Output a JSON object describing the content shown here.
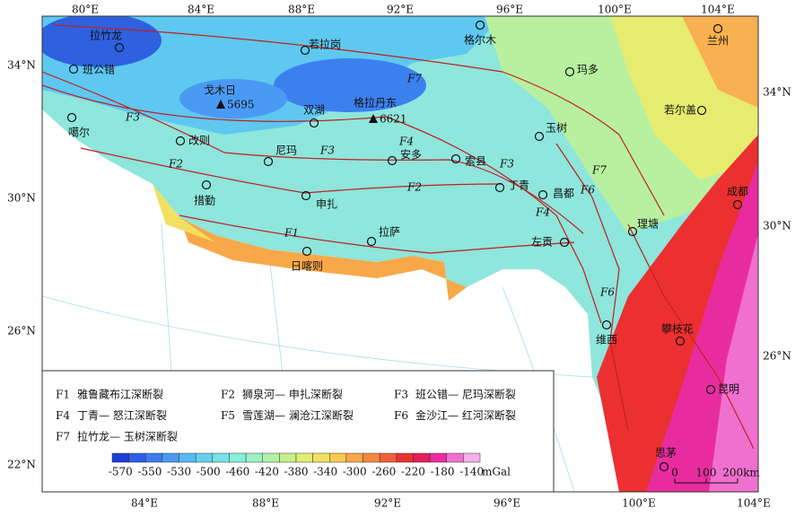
{
  "axes": {
    "top": [
      "80°E",
      "84°E",
      "88°E",
      "92°E",
      "96°E",
      "100°E",
      "104°E"
    ],
    "bottom": [
      "84°E",
      "88°E",
      "92°E",
      "96°E",
      "100°E",
      "104°E"
    ],
    "left": [
      "34°N",
      "30°N",
      "26°N",
      "22°N"
    ],
    "right": [
      "34°N",
      "30°N",
      "26°N"
    ]
  },
  "places": [
    "拉竹龙",
    "若拉岗",
    "格尔木",
    "兰州",
    "班公错",
    "玛多",
    "双湖",
    "若尔盖",
    "噶尔",
    "玉树",
    "改则",
    "尼玛",
    "安多",
    "索县",
    "措勤",
    "丁青",
    "昌都",
    "申扎",
    "成都",
    "理塘",
    "拉萨",
    "左贡",
    "日喀则",
    "维西",
    "攀枝花",
    "昆明",
    "思茅"
  ],
  "peaks": [
    {
      "name": "戈木日",
      "elevation": 5695
    },
    {
      "name": "格拉丹东",
      "elevation": 6621
    }
  ],
  "fault_labels": [
    "F7",
    "F3",
    "F3",
    "F4",
    "F2",
    "F2",
    "F1",
    "F3",
    "F4",
    "F6",
    "F7",
    "F6"
  ],
  "legend": [
    {
      "code": "F1",
      "name": "雅鲁藏布江深断裂"
    },
    {
      "code": "F2",
      "name": "狮泉河— 申扎深断裂"
    },
    {
      "code": "F3",
      "name": "班公错— 尼玛深断裂"
    },
    {
      "code": "F4",
      "name": "丁青— 怒江深断裂"
    },
    {
      "code": "F5",
      "name": "雪莲湖— 澜沧江深断裂"
    },
    {
      "code": "F6",
      "name": "金沙江— 红河深断裂"
    },
    {
      "code": "F7",
      "name": "拉竹龙— 玉树深断裂"
    }
  ],
  "colorbar": {
    "ticks": [
      -570,
      -550,
      -530,
      -500,
      -460,
      -420,
      -380,
      -340,
      -300,
      -260,
      -220,
      -180,
      -140
    ],
    "unit": "mGal",
    "colors": [
      "#1c3ed6",
      "#2a5ee6",
      "#3b7cf0",
      "#4a9af4",
      "#58b8f4",
      "#66d0f0",
      "#74e2e8",
      "#86eedc",
      "#9cf2c4",
      "#b2f2a4",
      "#c8f08a",
      "#e0ee70",
      "#f2e060",
      "#f8c850",
      "#f8a848",
      "#f48840",
      "#f06038",
      "#ec3030",
      "#e81e5a",
      "#ec2ca0",
      "#f070d0",
      "#f4b0e8"
    ]
  },
  "scale_bar": [
    "0",
    "100",
    "200km"
  ]
}
